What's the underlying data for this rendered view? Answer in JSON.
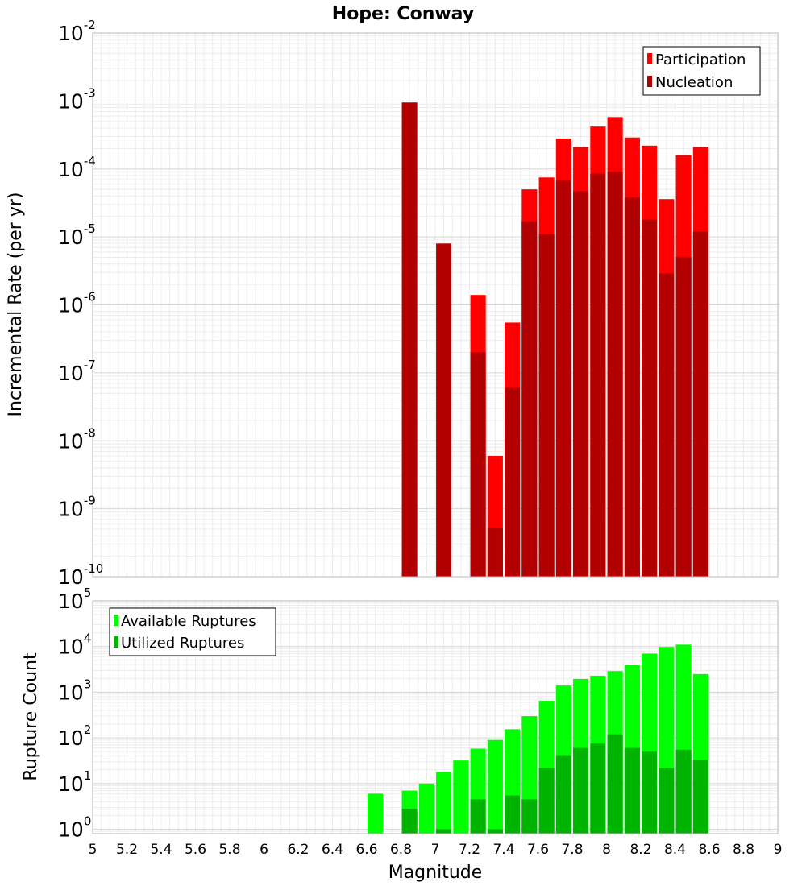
{
  "chart_data": [
    {
      "type": "bar",
      "title": "Hope: Conway",
      "xlabel": "",
      "ylabel": "Incremental Rate (per yr)",
      "yscale": "log",
      "xlim": [
        5,
        9
      ],
      "ylim": [
        1e-10,
        0.01
      ],
      "y_exponents": [
        -10,
        -9,
        -8,
        -7,
        -6,
        -5,
        -4,
        -3,
        -2
      ],
      "grid": true,
      "legend_position": "top-right",
      "bar_width": 0.09,
      "series": [
        {
          "name": "Participation",
          "color": "#ff0000",
          "x": [
            7.25,
            7.35,
            7.45,
            7.55,
            7.65,
            7.75,
            7.85,
            7.95,
            8.05,
            8.15,
            8.25,
            8.35,
            8.45,
            8.55
          ],
          "values": [
            1.4e-06,
            6e-09,
            5.5e-07,
            5e-05,
            7.5e-05,
            0.00028,
            0.00021,
            0.00042,
            0.00058,
            0.00029,
            0.00022,
            3.6e-05,
            0.00016,
            0.00021
          ]
        },
        {
          "name": "Nucleation",
          "color": "#b30000",
          "x": [
            6.85,
            7.05,
            7.25,
            7.35,
            7.45,
            7.55,
            7.65,
            7.75,
            7.85,
            7.95,
            8.05,
            8.15,
            8.25,
            8.35,
            8.45,
            8.55
          ],
          "values": [
            0.00095,
            8e-06,
            2e-07,
            5.2e-10,
            6e-08,
            1.7e-05,
            1.1e-05,
            6.7e-05,
            4.7e-05,
            8.5e-05,
            9.1e-05,
            3.8e-05,
            1.8e-05,
            2.9e-06,
            5.1e-06,
            1.2e-05
          ]
        }
      ]
    },
    {
      "type": "bar",
      "title": "",
      "xlabel": "Magnitude",
      "ylabel": "Rupture Count",
      "yscale": "log",
      "xlim": [
        5,
        9
      ],
      "ylim": [
        0.8,
        100000.0
      ],
      "y_exponents": [
        0,
        1,
        2,
        3,
        4,
        5
      ],
      "x_ticks": [
        "5",
        "5.2",
        "5.4",
        "5.6",
        "5.8",
        "6",
        "6.2",
        "6.4",
        "6.6",
        "6.8",
        "7",
        "7.2",
        "7.4",
        "7.6",
        "7.8",
        "8",
        "8.2",
        "8.4",
        "8.6",
        "8.8",
        "9"
      ],
      "grid": true,
      "legend_position": "top-left",
      "bar_width": 0.09,
      "series": [
        {
          "name": "Available Ruptures",
          "color": "#00ff00",
          "x": [
            6.65,
            6.85,
            6.95,
            7.05,
            7.15,
            7.25,
            7.35,
            7.45,
            7.55,
            7.65,
            7.75,
            7.85,
            7.95,
            8.05,
            8.15,
            8.25,
            8.35,
            8.45,
            8.55
          ],
          "values": [
            6,
            7,
            10,
            18,
            32,
            58,
            90,
            155,
            300,
            650,
            1400,
            1950,
            2300,
            2900,
            3900,
            7000,
            9800,
            11000,
            2500
          ]
        },
        {
          "name": "Utilized Ruptures",
          "color": "#00b300",
          "x": [
            6.85,
            7.05,
            7.25,
            7.35,
            7.45,
            7.55,
            7.65,
            7.75,
            7.85,
            7.95,
            8.05,
            8.15,
            8.25,
            8.35,
            8.45,
            8.55
          ],
          "values": [
            2.8,
            1,
            4.5,
            1,
            5.5,
            4.5,
            22,
            42,
            60,
            75,
            120,
            60,
            50,
            22,
            55,
            33
          ]
        }
      ]
    }
  ]
}
